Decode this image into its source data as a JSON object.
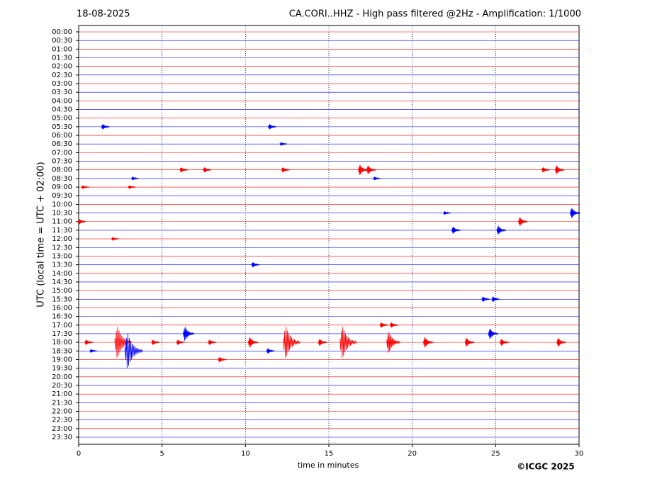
{
  "chart_data": {
    "type": "helicorder",
    "date": "18-08-2025",
    "title": "CA.CORI..HHZ - High pass filtered @2Hz - Amplification: 1/1000",
    "y_label": "UTC (local time = UTC + 02:00)",
    "x_label": "time in minutes",
    "copyright": "©ICGC 2025",
    "categories": [
      "00:00",
      "00:30",
      "01:00",
      "01:30",
      "02:00",
      "02:30",
      "03:00",
      "03:30",
      "04:00",
      "04:30",
      "05:00",
      "05:30",
      "06:00",
      "06:30",
      "07:00",
      "07:30",
      "08:00",
      "08:30",
      "09:00",
      "09:30",
      "10:00",
      "10:30",
      "11:00",
      "11:30",
      "12:00",
      "12:30",
      "13:00",
      "13:30",
      "14:00",
      "14:30",
      "15:00",
      "15:30",
      "16:00",
      "16:30",
      "17:00",
      "17:30",
      "18:00",
      "18:30",
      "19:00",
      "19:30",
      "20:00",
      "20:30",
      "21:00",
      "21:30",
      "22:00",
      "22:30",
      "23:00",
      "23:30"
    ],
    "colors": [
      "#ff0000",
      "#0000ff"
    ],
    "xlim": [
      0,
      30
    ],
    "xticks": [
      0,
      5,
      10,
      15,
      20,
      25,
      30
    ],
    "grid": true,
    "events": [
      {
        "time": "05:30",
        "minute": 1.5,
        "amplitude": 0.3
      },
      {
        "time": "05:30",
        "minute": 11.5,
        "amplitude": 0.3
      },
      {
        "time": "06:30",
        "minute": 12.2,
        "amplitude": 0.2
      },
      {
        "time": "08:00",
        "minute": 6.2,
        "amplitude": 0.3
      },
      {
        "time": "08:00",
        "minute": 7.6,
        "amplitude": 0.3
      },
      {
        "time": "08:00",
        "minute": 12.3,
        "amplitude": 0.3
      },
      {
        "time": "08:00",
        "minute": 16.9,
        "amplitude": 0.6
      },
      {
        "time": "08:00",
        "minute": 17.4,
        "amplitude": 0.5
      },
      {
        "time": "08:00",
        "minute": 27.9,
        "amplitude": 0.3
      },
      {
        "time": "08:00",
        "minute": 28.7,
        "amplitude": 0.5
      },
      {
        "time": "08:30",
        "minute": 3.3,
        "amplitude": 0.2
      },
      {
        "time": "08:30",
        "minute": 17.8,
        "amplitude": 0.2
      },
      {
        "time": "09:00",
        "minute": 0.3,
        "amplitude": 0.2
      },
      {
        "time": "09:00",
        "minute": 3.1,
        "amplitude": 0.2
      },
      {
        "time": "10:30",
        "minute": 22.0,
        "amplitude": 0.2
      },
      {
        "time": "10:30",
        "minute": 29.6,
        "amplitude": 0.6
      },
      {
        "time": "11:00",
        "minute": 0.1,
        "amplitude": 0.3
      },
      {
        "time": "11:00",
        "minute": 26.5,
        "amplitude": 0.5
      },
      {
        "time": "11:30",
        "minute": 22.5,
        "amplitude": 0.4
      },
      {
        "time": "11:30",
        "minute": 25.2,
        "amplitude": 0.5
      },
      {
        "time": "12:00",
        "minute": 2.1,
        "amplitude": 0.2
      },
      {
        "time": "13:30",
        "minute": 10.5,
        "amplitude": 0.3
      },
      {
        "time": "15:30",
        "minute": 24.3,
        "amplitude": 0.3
      },
      {
        "time": "15:30",
        "minute": 24.9,
        "amplitude": 0.3
      },
      {
        "time": "17:00",
        "minute": 18.2,
        "amplitude": 0.3
      },
      {
        "time": "17:00",
        "minute": 18.8,
        "amplitude": 0.3
      },
      {
        "time": "17:30",
        "minute": 6.4,
        "amplitude": 0.8
      },
      {
        "time": "17:30",
        "minute": 24.7,
        "amplitude": 0.6
      },
      {
        "time": "18:00",
        "minute": 0.5,
        "amplitude": 0.3
      },
      {
        "time": "18:00",
        "minute": 2.3,
        "amplitude": 1.8
      },
      {
        "time": "18:00",
        "minute": 4.5,
        "amplitude": 0.3
      },
      {
        "time": "18:00",
        "minute": 6.0,
        "amplitude": 0.3
      },
      {
        "time": "18:00",
        "minute": 7.9,
        "amplitude": 0.3
      },
      {
        "time": "18:00",
        "minute": 10.3,
        "amplitude": 0.6
      },
      {
        "time": "18:00",
        "minute": 12.4,
        "amplitude": 1.8
      },
      {
        "time": "18:00",
        "minute": 14.5,
        "amplitude": 0.4
      },
      {
        "time": "18:00",
        "minute": 15.8,
        "amplitude": 1.8
      },
      {
        "time": "18:00",
        "minute": 18.6,
        "amplitude": 1.2
      },
      {
        "time": "18:00",
        "minute": 20.8,
        "amplitude": 0.6
      },
      {
        "time": "18:00",
        "minute": 23.3,
        "amplitude": 0.5
      },
      {
        "time": "18:00",
        "minute": 25.4,
        "amplitude": 0.4
      },
      {
        "time": "18:00",
        "minute": 28.8,
        "amplitude": 0.5
      },
      {
        "time": "18:30",
        "minute": 0.8,
        "amplitude": 0.2
      },
      {
        "time": "18:30",
        "minute": 2.9,
        "amplitude": 2.0
      },
      {
        "time": "18:30",
        "minute": 11.4,
        "amplitude": 0.3
      },
      {
        "time": "19:00",
        "minute": 8.5,
        "amplitude": 0.3
      }
    ]
  }
}
